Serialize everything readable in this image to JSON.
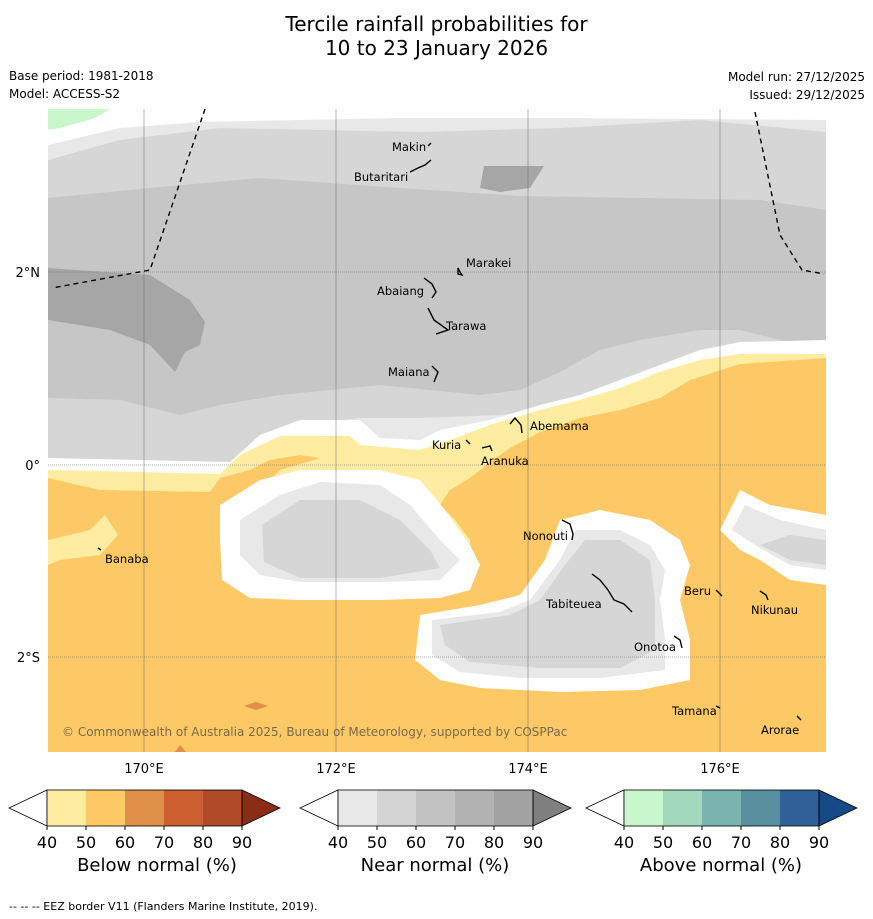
{
  "title": {
    "line1": "Tercile rainfall probabilities for",
    "line2": "10 to 23 January 2026"
  },
  "meta": {
    "base_period": "Base period: 1981-2018",
    "model": "Model: ACCESS-S2",
    "model_run": "Model run: 27/12/2025",
    "issued": "Issued: 29/12/2025"
  },
  "map": {
    "lat_labels": [
      "2°N",
      "0°",
      "2°S"
    ],
    "lon_labels": [
      "170°E",
      "172°E",
      "174°E",
      "176°E"
    ],
    "islands": [
      {
        "name": "Makin"
      },
      {
        "name": "Butaritari"
      },
      {
        "name": "Marakei"
      },
      {
        "name": "Abaiang"
      },
      {
        "name": "Tarawa"
      },
      {
        "name": "Maiana"
      },
      {
        "name": "Abemama"
      },
      {
        "name": "Kuria"
      },
      {
        "name": "Aranuka"
      },
      {
        "name": "Banaba"
      },
      {
        "name": "Nonouti"
      },
      {
        "name": "Tabiteuea"
      },
      {
        "name": "Beru"
      },
      {
        "name": "Nikunau"
      },
      {
        "name": "Onotoa"
      },
      {
        "name": "Tamana"
      },
      {
        "name": "Arorae"
      }
    ],
    "copyright": "© Commonwealth of Australia 2025, Bureau of Meteorology, supported by COSPPac"
  },
  "colorbars": [
    {
      "title": "Below normal (%)",
      "ticks": [
        "40",
        "50",
        "60",
        "70",
        "80",
        "90"
      ],
      "colors": [
        "#ffffff",
        "#feeca0",
        "#fdc966",
        "#e08f48",
        "#cc5f30",
        "#b04a28",
        "#8a2d18"
      ]
    },
    {
      "title": "Near normal (%)",
      "ticks": [
        "40",
        "50",
        "60",
        "70",
        "80",
        "90"
      ],
      "colors": [
        "#ffffff",
        "#e8e8e8",
        "#d4d4d4",
        "#c2c2c2",
        "#b2b2b2",
        "#a2a2a2",
        "#7f7f7f"
      ]
    },
    {
      "title": "Above normal (%)",
      "ticks": [
        "40",
        "50",
        "60",
        "70",
        "80",
        "90"
      ],
      "colors": [
        "#ffffff",
        "#c8f7cc",
        "#a2d8bc",
        "#7ab4b0",
        "#5a8fa0",
        "#2f6098",
        "#164a86"
      ]
    }
  ],
  "footnote": "-- -- -- EEZ border V11 (Flanders Marine Institute, 2019)."
}
